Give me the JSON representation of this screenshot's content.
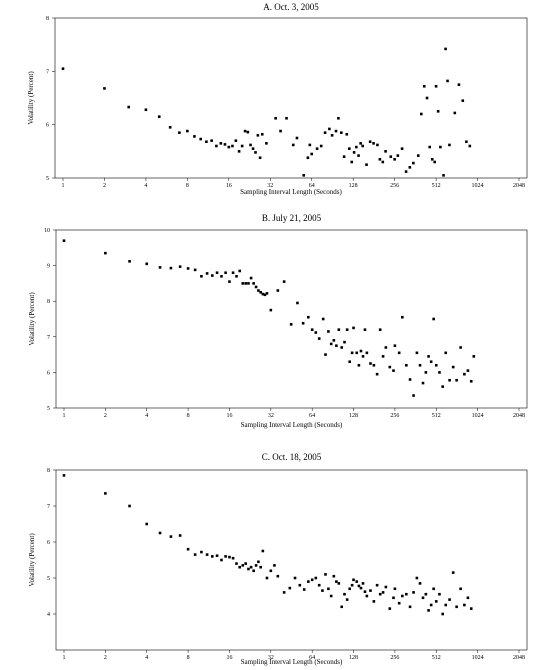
{
  "figure": {
    "background": "#ffffff",
    "marker_color": "#000000"
  },
  "chart_data": [
    {
      "type": "scatter",
      "title": "A. Oct. 3, 2005",
      "xlabel": "Sampling Interval Length (Seconds)",
      "ylabel": "Volatility (Percent)",
      "xscale": "log2",
      "xlim": [
        1,
        2048
      ],
      "ylim": [
        5,
        8
      ],
      "xticks": [
        1,
        2,
        4,
        8,
        16,
        32,
        64,
        128,
        256,
        512,
        1024,
        2048
      ],
      "xtick_labels": [
        "1",
        "2",
        "4",
        "8",
        "16",
        "32",
        "64",
        "128",
        "256",
        "512",
        "1024",
        "2048"
      ],
      "yticks": [
        5,
        6,
        7,
        8
      ],
      "ytick_labels": [
        "5",
        "6",
        "7",
        "8"
      ],
      "grid": false,
      "legend": "none",
      "x": [
        1,
        2,
        3,
        4,
        5,
        6,
        7,
        8,
        9,
        10,
        11,
        12,
        13,
        14,
        15,
        16,
        17,
        18,
        19,
        20,
        21,
        22,
        23,
        24,
        25,
        26,
        27,
        28,
        30,
        35,
        38,
        42,
        47,
        50,
        56,
        60,
        62,
        64,
        70,
        75,
        80,
        86,
        90,
        96,
        100,
        105,
        110,
        115,
        120,
        125,
        130,
        135,
        140,
        145,
        150,
        160,
        170,
        180,
        192,
        200,
        210,
        220,
        240,
        256,
        270,
        290,
        310,
        330,
        350,
        380,
        400,
        420,
        440,
        460,
        480,
        500,
        512,
        530,
        550,
        580,
        600,
        620,
        640,
        700,
        750,
        800,
        850,
        900
      ],
      "y": [
        7.05,
        6.68,
        6.33,
        6.28,
        6.15,
        5.95,
        5.85,
        5.88,
        5.78,
        5.73,
        5.68,
        5.7,
        5.6,
        5.65,
        5.63,
        5.58,
        5.6,
        5.7,
        5.5,
        5.6,
        5.88,
        5.86,
        5.62,
        5.55,
        5.48,
        5.8,
        5.38,
        5.82,
        5.65,
        6.12,
        5.88,
        6.12,
        5.62,
        5.75,
        5.05,
        5.38,
        5.62,
        5.45,
        5.55,
        5.6,
        5.85,
        5.92,
        5.8,
        5.88,
        6.12,
        5.85,
        5.4,
        5.82,
        5.55,
        5.3,
        5.48,
        5.58,
        5.42,
        5.65,
        5.6,
        5.25,
        5.68,
        5.65,
        5.62,
        5.35,
        5.3,
        5.5,
        5.4,
        5.35,
        5.42,
        5.55,
        5.12,
        5.2,
        5.28,
        5.42,
        6.2,
        6.72,
        6.5,
        5.58,
        5.35,
        5.3,
        6.72,
        6.25,
        5.58,
        5.05,
        7.42,
        6.82,
        5.62,
        6.22,
        6.75,
        6.45,
        5.68,
        5.6
      ]
    },
    {
      "type": "scatter",
      "title": "B. July 21, 2005",
      "xlabel": "Sampling Interval Length (Seconds)",
      "ylabel": "Volatility (Percent)",
      "xscale": "log2",
      "xlim": [
        1,
        2048
      ],
      "ylim": [
        5,
        10
      ],
      "xticks": [
        1,
        2,
        4,
        8,
        16,
        32,
        64,
        128,
        256,
        512,
        1024,
        2048
      ],
      "xtick_labels": [
        "1",
        "2",
        "4",
        "8",
        "16",
        "32",
        "64",
        "128",
        "256",
        "512",
        "1024",
        "2048"
      ],
      "yticks": [
        5,
        6,
        7,
        8,
        9,
        10
      ],
      "ytick_labels": [
        "5",
        "6",
        "7",
        "8",
        "9",
        "10"
      ],
      "grid": false,
      "legend": "none",
      "x": [
        1,
        2,
        3,
        4,
        5,
        6,
        7,
        8,
        9,
        10,
        11,
        12,
        13,
        14,
        15,
        16,
        17,
        18,
        19,
        20,
        21,
        22,
        23,
        24,
        25,
        26,
        27,
        28,
        29,
        30,
        32,
        36,
        40,
        45,
        50,
        55,
        60,
        64,
        68,
        72,
        77,
        80,
        84,
        88,
        92,
        96,
        100,
        105,
        110,
        115,
        120,
        125,
        128,
        135,
        140,
        145,
        150,
        155,
        160,
        170,
        180,
        190,
        200,
        210,
        220,
        235,
        250,
        256,
        275,
        290,
        310,
        330,
        350,
        370,
        390,
        410,
        430,
        450,
        470,
        490,
        512,
        540,
        570,
        600,
        640,
        680,
        720,
        770,
        820,
        870,
        920,
        960
      ],
      "y": [
        9.7,
        9.35,
        9.12,
        9.05,
        8.95,
        8.93,
        8.97,
        8.92,
        8.88,
        8.7,
        8.78,
        8.72,
        8.8,
        8.7,
        8.8,
        8.55,
        8.8,
        8.7,
        8.85,
        8.5,
        8.5,
        8.5,
        8.65,
        8.5,
        8.4,
        8.3,
        8.25,
        8.2,
        8.18,
        8.22,
        7.75,
        8.3,
        8.55,
        7.35,
        7.95,
        7.38,
        7.55,
        7.2,
        7.12,
        6.95,
        7.5,
        6.5,
        7.15,
        6.8,
        6.9,
        6.75,
        7.2,
        6.7,
        6.85,
        7.2,
        6.3,
        6.55,
        7.25,
        6.55,
        6.2,
        6.6,
        6.45,
        7.2,
        6.55,
        6.25,
        6.2,
        5.95,
        7.2,
        6.45,
        6.7,
        6.15,
        6.05,
        6.75,
        6.55,
        7.55,
        6.2,
        5.8,
        5.35,
        6.55,
        6.2,
        5.7,
        6.0,
        6.45,
        6.3,
        7.5,
        6.2,
        6.0,
        5.6,
        6.55,
        5.78,
        6.15,
        5.78,
        6.7,
        5.95,
        6.05,
        5.75,
        6.45
      ]
    },
    {
      "type": "scatter",
      "title": "C. Oct. 18, 2005",
      "xlabel": "Sampling Interval Length (Seconds)",
      "ylabel": "Volatility (Percent)",
      "xscale": "log2",
      "xlim": [
        1,
        2048
      ],
      "ylim": [
        3,
        8
      ],
      "xticks": [
        1,
        2,
        4,
        8,
        16,
        32,
        64,
        128,
        256,
        512,
        1024,
        2048
      ],
      "xtick_labels": [
        "1",
        "2",
        "4",
        "8",
        "16",
        "32",
        "64",
        "128",
        "256",
        "512",
        "1024",
        "2048"
      ],
      "yticks": [
        4,
        5,
        6,
        7,
        8
      ],
      "ytick_labels": [
        "4",
        "5",
        "6",
        "7",
        "8"
      ],
      "grid": false,
      "legend": "none",
      "x": [
        1,
        2,
        3,
        4,
        5,
        6,
        7,
        8,
        9,
        10,
        11,
        12,
        13,
        14,
        15,
        16,
        17,
        18,
        19,
        20,
        21,
        22,
        23,
        24,
        25,
        26,
        27,
        28,
        30,
        32,
        34,
        36,
        40,
        44,
        48,
        52,
        56,
        60,
        64,
        68,
        72,
        76,
        80,
        84,
        88,
        92,
        96,
        100,
        105,
        110,
        115,
        120,
        125,
        128,
        135,
        140,
        145,
        150,
        155,
        160,
        170,
        180,
        190,
        200,
        210,
        220,
        235,
        250,
        256,
        275,
        290,
        310,
        330,
        350,
        370,
        390,
        410,
        430,
        450,
        470,
        490,
        512,
        540,
        570,
        600,
        640,
        680,
        720,
        770,
        820,
        870,
        920
      ],
      "y": [
        7.85,
        7.35,
        7.0,
        6.5,
        6.25,
        6.15,
        6.18,
        5.8,
        5.65,
        5.72,
        5.65,
        5.6,
        5.62,
        5.5,
        5.6,
        5.58,
        5.55,
        5.4,
        5.3,
        5.35,
        5.4,
        5.25,
        5.3,
        5.2,
        5.35,
        5.45,
        5.3,
        5.75,
        5.0,
        5.2,
        5.35,
        5.05,
        4.6,
        4.72,
        5.0,
        4.8,
        4.68,
        4.9,
        4.95,
        5.0,
        4.8,
        4.65,
        5.1,
        4.7,
        4.5,
        5.05,
        4.9,
        4.85,
        4.2,
        4.55,
        4.4,
        4.7,
        4.8,
        4.95,
        4.9,
        4.78,
        4.72,
        4.85,
        4.62,
        4.5,
        4.65,
        4.35,
        4.8,
        4.55,
        4.6,
        4.75,
        4.15,
        4.45,
        4.7,
        4.3,
        4.5,
        4.55,
        4.2,
        4.6,
        5.0,
        4.85,
        4.45,
        4.55,
        4.1,
        4.25,
        4.7,
        4.35,
        4.55,
        4.0,
        4.25,
        4.4,
        5.15,
        4.2,
        4.7,
        4.25,
        4.45,
        4.15
      ]
    }
  ]
}
